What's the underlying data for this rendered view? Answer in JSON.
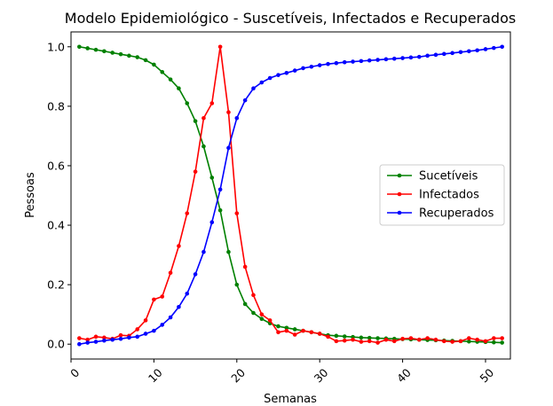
{
  "chart_data": {
    "type": "line",
    "title": "Modelo Epidemiológico - Suscetíveis, Infectados e Recuperados",
    "xlabel": "Semanas",
    "ylabel": "Pessoas",
    "xlim": [
      0,
      53
    ],
    "ylim": [
      -0.05,
      1.05
    ],
    "xticks": [
      0,
      10,
      20,
      30,
      40,
      50
    ],
    "yticks": [
      0.0,
      0.2,
      0.4,
      0.6,
      0.8,
      1.0
    ],
    "xtick_labels": [
      "0",
      "10",
      "20",
      "30",
      "40",
      "50"
    ],
    "ytick_labels": [
      "0.0",
      "0.2",
      "0.4",
      "0.6",
      "0.8",
      "1.0"
    ],
    "grid": false,
    "legend_position": "center-right",
    "x": [
      1,
      2,
      3,
      4,
      5,
      6,
      7,
      8,
      9,
      10,
      11,
      12,
      13,
      14,
      15,
      16,
      17,
      18,
      19,
      20,
      21,
      22,
      23,
      24,
      25,
      26,
      27,
      28,
      29,
      30,
      31,
      32,
      33,
      34,
      35,
      36,
      37,
      38,
      39,
      40,
      41,
      42,
      43,
      44,
      45,
      46,
      47,
      48,
      49,
      50,
      51,
      52
    ],
    "series": [
      {
        "name": "Sucetíveis",
        "color": "#008000",
        "values": [
          1.0,
          0.995,
          0.99,
          0.985,
          0.98,
          0.975,
          0.97,
          0.965,
          0.955,
          0.94,
          0.915,
          0.89,
          0.86,
          0.81,
          0.75,
          0.665,
          0.56,
          0.45,
          0.31,
          0.2,
          0.135,
          0.105,
          0.085,
          0.07,
          0.06,
          0.055,
          0.05,
          0.045,
          0.04,
          0.035,
          0.03,
          0.028,
          0.026,
          0.024,
          0.022,
          0.021,
          0.02,
          0.019,
          0.018,
          0.017,
          0.016,
          0.015,
          0.014,
          0.013,
          0.012,
          0.011,
          0.01,
          0.009,
          0.008,
          0.007,
          0.006,
          0.005
        ]
      },
      {
        "name": "Infectados",
        "color": "#ff0000",
        "values": [
          0.02,
          0.015,
          0.025,
          0.022,
          0.018,
          0.03,
          0.028,
          0.05,
          0.08,
          0.15,
          0.16,
          0.24,
          0.33,
          0.44,
          0.58,
          0.76,
          0.81,
          1.0,
          0.78,
          0.44,
          0.26,
          0.165,
          0.1,
          0.08,
          0.04,
          0.045,
          0.032,
          0.045,
          0.04,
          0.035,
          0.025,
          0.01,
          0.012,
          0.015,
          0.008,
          0.01,
          0.005,
          0.015,
          0.01,
          0.018,
          0.02,
          0.015,
          0.02,
          0.015,
          0.01,
          0.008,
          0.01,
          0.02,
          0.015,
          0.01,
          0.02,
          0.02
        ]
      },
      {
        "name": "Recuperados",
        "color": "#0000ff",
        "values": [
          0.0,
          0.005,
          0.008,
          0.012,
          0.015,
          0.018,
          0.022,
          0.025,
          0.035,
          0.045,
          0.065,
          0.09,
          0.125,
          0.17,
          0.235,
          0.31,
          0.41,
          0.52,
          0.66,
          0.76,
          0.82,
          0.86,
          0.88,
          0.895,
          0.905,
          0.912,
          0.92,
          0.928,
          0.933,
          0.938,
          0.942,
          0.945,
          0.948,
          0.95,
          0.952,
          0.954,
          0.956,
          0.958,
          0.96,
          0.962,
          0.964,
          0.966,
          0.97,
          0.973,
          0.976,
          0.979,
          0.982,
          0.985,
          0.988,
          0.992,
          0.996,
          1.0
        ]
      }
    ]
  }
}
